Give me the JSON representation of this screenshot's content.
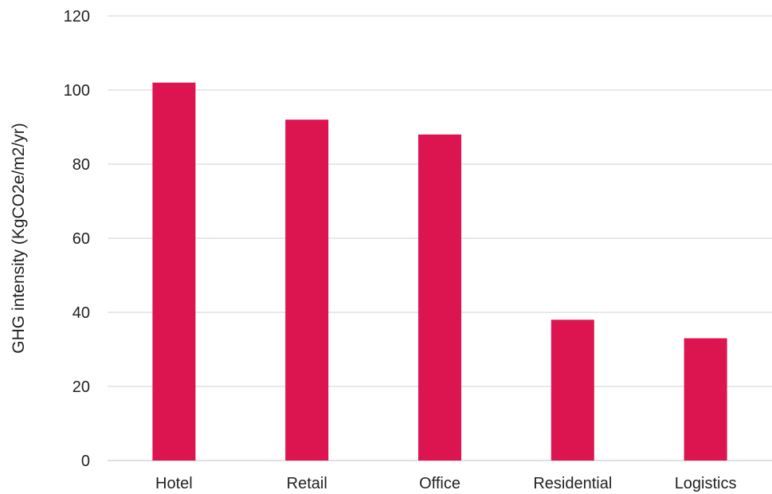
{
  "chart_data": {
    "type": "bar",
    "categories": [
      "Hotel",
      "Retail",
      "Office",
      "Residential",
      "Logistics"
    ],
    "values": [
      102,
      92,
      88,
      38,
      33
    ],
    "title": "",
    "xlabel": "",
    "ylabel": "GHG intensity (KgCO2e/m2/yr)",
    "ylim": [
      0,
      120
    ],
    "yticks": [
      0,
      20,
      40,
      60,
      80,
      100,
      120
    ],
    "grid": true,
    "bar_color": "#dc1450",
    "gridline_color": "#e1e1e1",
    "text_color": "#222222"
  }
}
